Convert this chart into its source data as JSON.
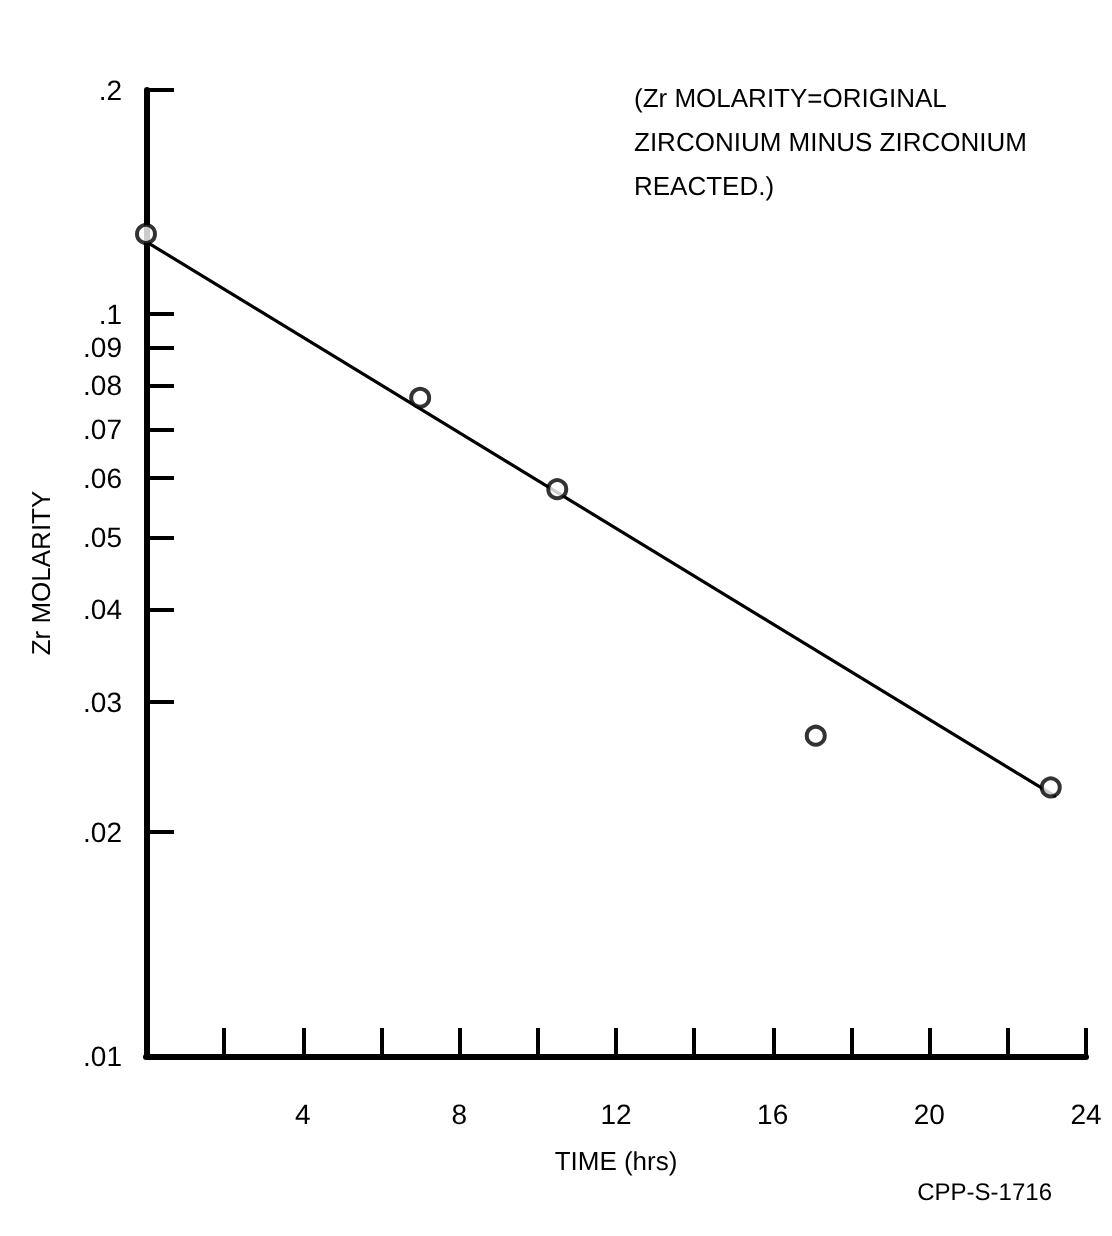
{
  "chart_data": {
    "type": "scatter",
    "xlabel": "TIME (hrs)",
    "ylabel": "Zr MOLARITY",
    "log": "y",
    "grid": false,
    "xlim": [
      0,
      24
    ],
    "xticks": [
      {
        "value": 2,
        "label": null
      },
      4,
      {
        "value": 6,
        "label": null
      },
      8,
      {
        "value": 10,
        "label": null
      },
      12,
      {
        "value": 14,
        "label": null
      },
      16,
      {
        "value": 18,
        "label": null
      },
      20,
      {
        "value": 22,
        "label": null
      },
      24
    ],
    "ylim": [
      0.01,
      0.2
    ],
    "yticks": [
      {
        "value": 0.01,
        "label": ".01"
      },
      {
        "value": 0.02,
        "label": ".02"
      },
      {
        "value": 0.03,
        "label": ".03"
      },
      {
        "value": 0.04,
        "label": ".04"
      },
      {
        "value": 0.05,
        "label": ".05"
      },
      {
        "value": 0.06,
        "label": ".06"
      },
      {
        "value": 0.07,
        "label": ".07"
      },
      {
        "value": 0.08,
        "label": ".08"
      },
      {
        "value": 0.09,
        "label": ".09"
      },
      {
        "value": 0.1,
        "label": ".1"
      },
      {
        "value": 0.2,
        "label": ".2"
      }
    ],
    "series": [
      {
        "color": "#000000",
        "marker": "circle",
        "x": [
          0,
          7,
          10.5,
          17.1,
          23.1
        ],
        "values": [
          0.128,
          0.077,
          0.058,
          0.027,
          0.023
        ]
      },
      {
        "type": "line",
        "color": "#000000",
        "marker": "none",
        "line_style": "solid",
        "x": [
          0,
          23.2
        ],
        "values": [
          0.125,
          0.0224
        ]
      }
    ],
    "annotations": [
      "(Zr MOLARITY=ORIGINAL ZIRCONIUM MINUS ZIRCONIUM REACTED.)",
      "CPP-S-1716"
    ]
  }
}
